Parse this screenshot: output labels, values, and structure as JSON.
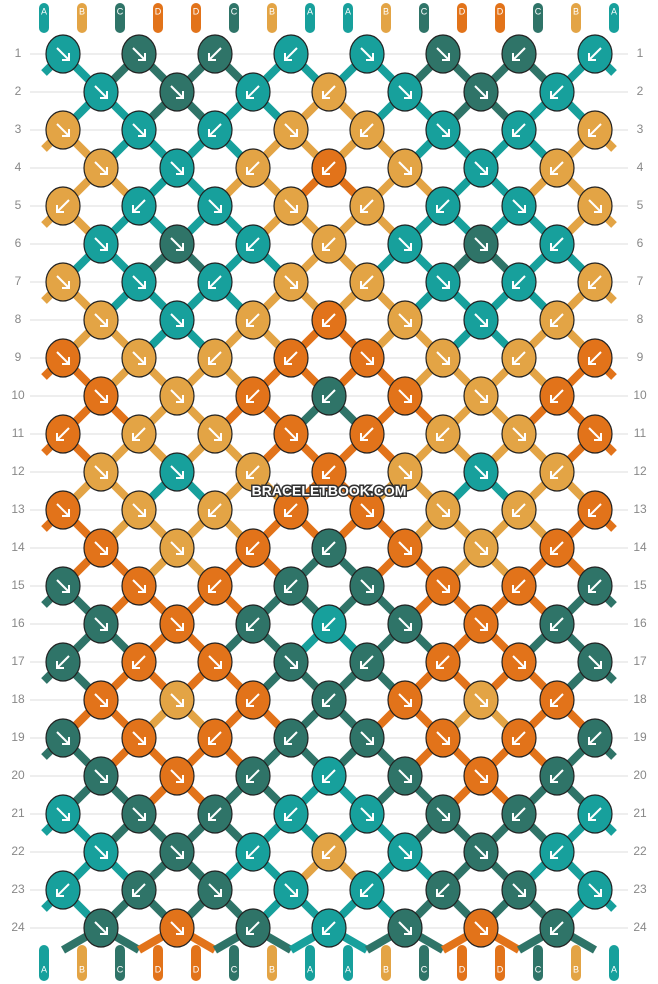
{
  "watermark": "BRACELETBOOK.COM",
  "colors": {
    "A": "#17a09c",
    "B": "#e3a445",
    "C": "#2f7468",
    "D": "#e2731a"
  },
  "strings_top": [
    "A",
    "B",
    "C",
    "D",
    "D",
    "C",
    "B",
    "A",
    "A",
    "B",
    "C",
    "D",
    "D",
    "C",
    "B",
    "A"
  ],
  "strings_bottom": [
    "A",
    "B",
    "C",
    "D",
    "D",
    "C",
    "B",
    "A",
    "A",
    "B",
    "C",
    "D",
    "D",
    "C",
    "B",
    "A"
  ],
  "rows": [
    {
      "number": "1",
      "knots": [
        "Ar",
        "Cr",
        "Cl",
        "Al",
        "Ar",
        "Cr",
        "Cl",
        "Al"
      ]
    },
    {
      "number": "2",
      "knots": [
        "Ar",
        "Cr",
        "Al",
        "Bl",
        "Ar",
        "Cr",
        "Al"
      ]
    },
    {
      "number": "3",
      "knots": [
        "Br",
        "Ar",
        "Al",
        "Br",
        "Bl",
        "Ar",
        "Al",
        "Bl"
      ]
    },
    {
      "number": "4",
      "knots": [
        "Br",
        "Ar",
        "Bl",
        "Dl",
        "Br",
        "Ar",
        "Bl"
      ]
    },
    {
      "number": "5",
      "knots": [
        "Bl",
        "Al",
        "Ar",
        "Br",
        "Bl",
        "Al",
        "Ar",
        "Br"
      ]
    },
    {
      "number": "6",
      "knots": [
        "Ar",
        "Cr",
        "Al",
        "Bl",
        "Ar",
        "Cr",
        "Al"
      ]
    },
    {
      "number": "7",
      "knots": [
        "Br",
        "Ar",
        "Al",
        "Br",
        "Bl",
        "Ar",
        "Al",
        "Bl"
      ]
    },
    {
      "number": "8",
      "knots": [
        "Br",
        "Ar",
        "Bl",
        "Dl",
        "Br",
        "Ar",
        "Bl"
      ]
    },
    {
      "number": "9",
      "knots": [
        "Dr",
        "Br",
        "Bl",
        "Dl",
        "Dr",
        "Br",
        "Bl",
        "Dl"
      ]
    },
    {
      "number": "10",
      "knots": [
        "Dr",
        "Br",
        "Dl",
        "Cl",
        "Dr",
        "Br",
        "Dl"
      ]
    },
    {
      "number": "11",
      "knots": [
        "Dl",
        "Bl",
        "Br",
        "Dr",
        "Dl",
        "Bl",
        "Br",
        "Dr"
      ]
    },
    {
      "number": "12",
      "knots": [
        "Br",
        "Ar",
        "Bl",
        "Dl",
        "Br",
        "Ar",
        "Bl"
      ]
    },
    {
      "number": "13",
      "knots": [
        "Dr",
        "Br",
        "Bl",
        "Dl",
        "Dr",
        "Br",
        "Bl",
        "Dl"
      ]
    },
    {
      "number": "14",
      "knots": [
        "Dr",
        "Br",
        "Dl",
        "Cl",
        "Dr",
        "Br",
        "Dl"
      ]
    },
    {
      "number": "15",
      "knots": [
        "Cr",
        "Dr",
        "Dl",
        "Cl",
        "Cr",
        "Dr",
        "Dl",
        "Cl"
      ]
    },
    {
      "number": "16",
      "knots": [
        "Cr",
        "Dr",
        "Cl",
        "Al",
        "Cr",
        "Dr",
        "Cl"
      ]
    },
    {
      "number": "17",
      "knots": [
        "Cl",
        "Dl",
        "Dr",
        "Cr",
        "Cl",
        "Dl",
        "Dr",
        "Cr"
      ]
    },
    {
      "number": "18",
      "knots": [
        "Dr",
        "Br",
        "Dl",
        "Cl",
        "Dr",
        "Br",
        "Dl"
      ]
    },
    {
      "number": "19",
      "knots": [
        "Cr",
        "Dr",
        "Dl",
        "Cl",
        "Cr",
        "Dr",
        "Dl",
        "Cl"
      ]
    },
    {
      "number": "20",
      "knots": [
        "Cr",
        "Dr",
        "Cl",
        "Al",
        "Cr",
        "Dr",
        "Cl"
      ]
    },
    {
      "number": "21",
      "knots": [
        "Ar",
        "Cr",
        "Cl",
        "Al",
        "Ar",
        "Cr",
        "Cl",
        "Al"
      ]
    },
    {
      "number": "22",
      "knots": [
        "Ar",
        "Cr",
        "Al",
        "Bl",
        "Ar",
        "Cr",
        "Al"
      ]
    },
    {
      "number": "23",
      "knots": [
        "Al",
        "Cl",
        "Cr",
        "Ar",
        "Al",
        "Cl",
        "Cr",
        "Ar"
      ]
    },
    {
      "number": "24",
      "knots": [
        "Cr",
        "Dr",
        "Cl",
        "Al",
        "Cr",
        "Dr",
        "Cl"
      ]
    }
  ]
}
